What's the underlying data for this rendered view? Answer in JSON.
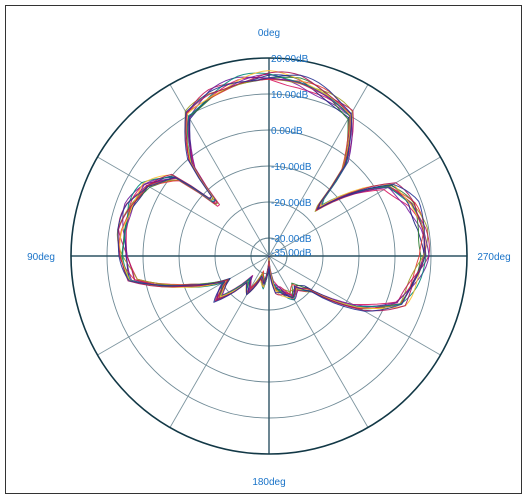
{
  "chart_data": {
    "type": "polar",
    "title": "",
    "angle_labels": {
      "top": "0deg",
      "left": "90deg",
      "bottom": "180deg",
      "right": "270deg"
    },
    "radial_ticks": [
      "-35.00dB",
      "-30.00dB",
      "-20.00dB",
      "-10.00dB",
      "0.00dB",
      "10.00dB",
      "20.00dB"
    ],
    "r_range_db": [
      -35,
      20
    ],
    "grid": true,
    "spoke_step_deg": 30,
    "series_colors": [
      "#d81b60",
      "#7b1fa2",
      "#1a237e",
      "#2e7d32",
      "#e53935",
      "#9e9d24",
      "#c2185b",
      "#6a1b9a",
      "#00897b",
      "#fbc02d",
      "#ad1457",
      "#283593"
    ],
    "pattern": {
      "angles_deg": [
        0,
        10,
        20,
        30,
        40,
        45,
        50,
        60,
        70,
        80,
        90,
        100,
        110,
        120,
        130,
        140,
        150,
        160,
        170,
        180,
        190,
        200,
        210,
        220,
        230,
        240,
        250,
        260,
        270,
        280,
        290,
        300,
        310,
        315,
        320,
        330,
        340,
        350
      ],
      "gain_db": [
        14.8,
        14.2,
        12.8,
        10.3,
        -1.5,
        -16.5,
        -1.2,
        4.4,
        6.3,
        6.6,
        5.5,
        3.5,
        -10.8,
        -21,
        -16.5,
        -26.5,
        -23.5,
        -29,
        -26.5,
        -33.5,
        -26,
        -24.5,
        -22,
        -23.5,
        -20.2,
        -6.2,
        3.8,
        5.8,
        8.3,
        8.6,
        7.4,
        3.8,
        -10.5,
        -17.5,
        -2.3,
        10.4,
        12.6,
        14.3
      ]
    }
  }
}
